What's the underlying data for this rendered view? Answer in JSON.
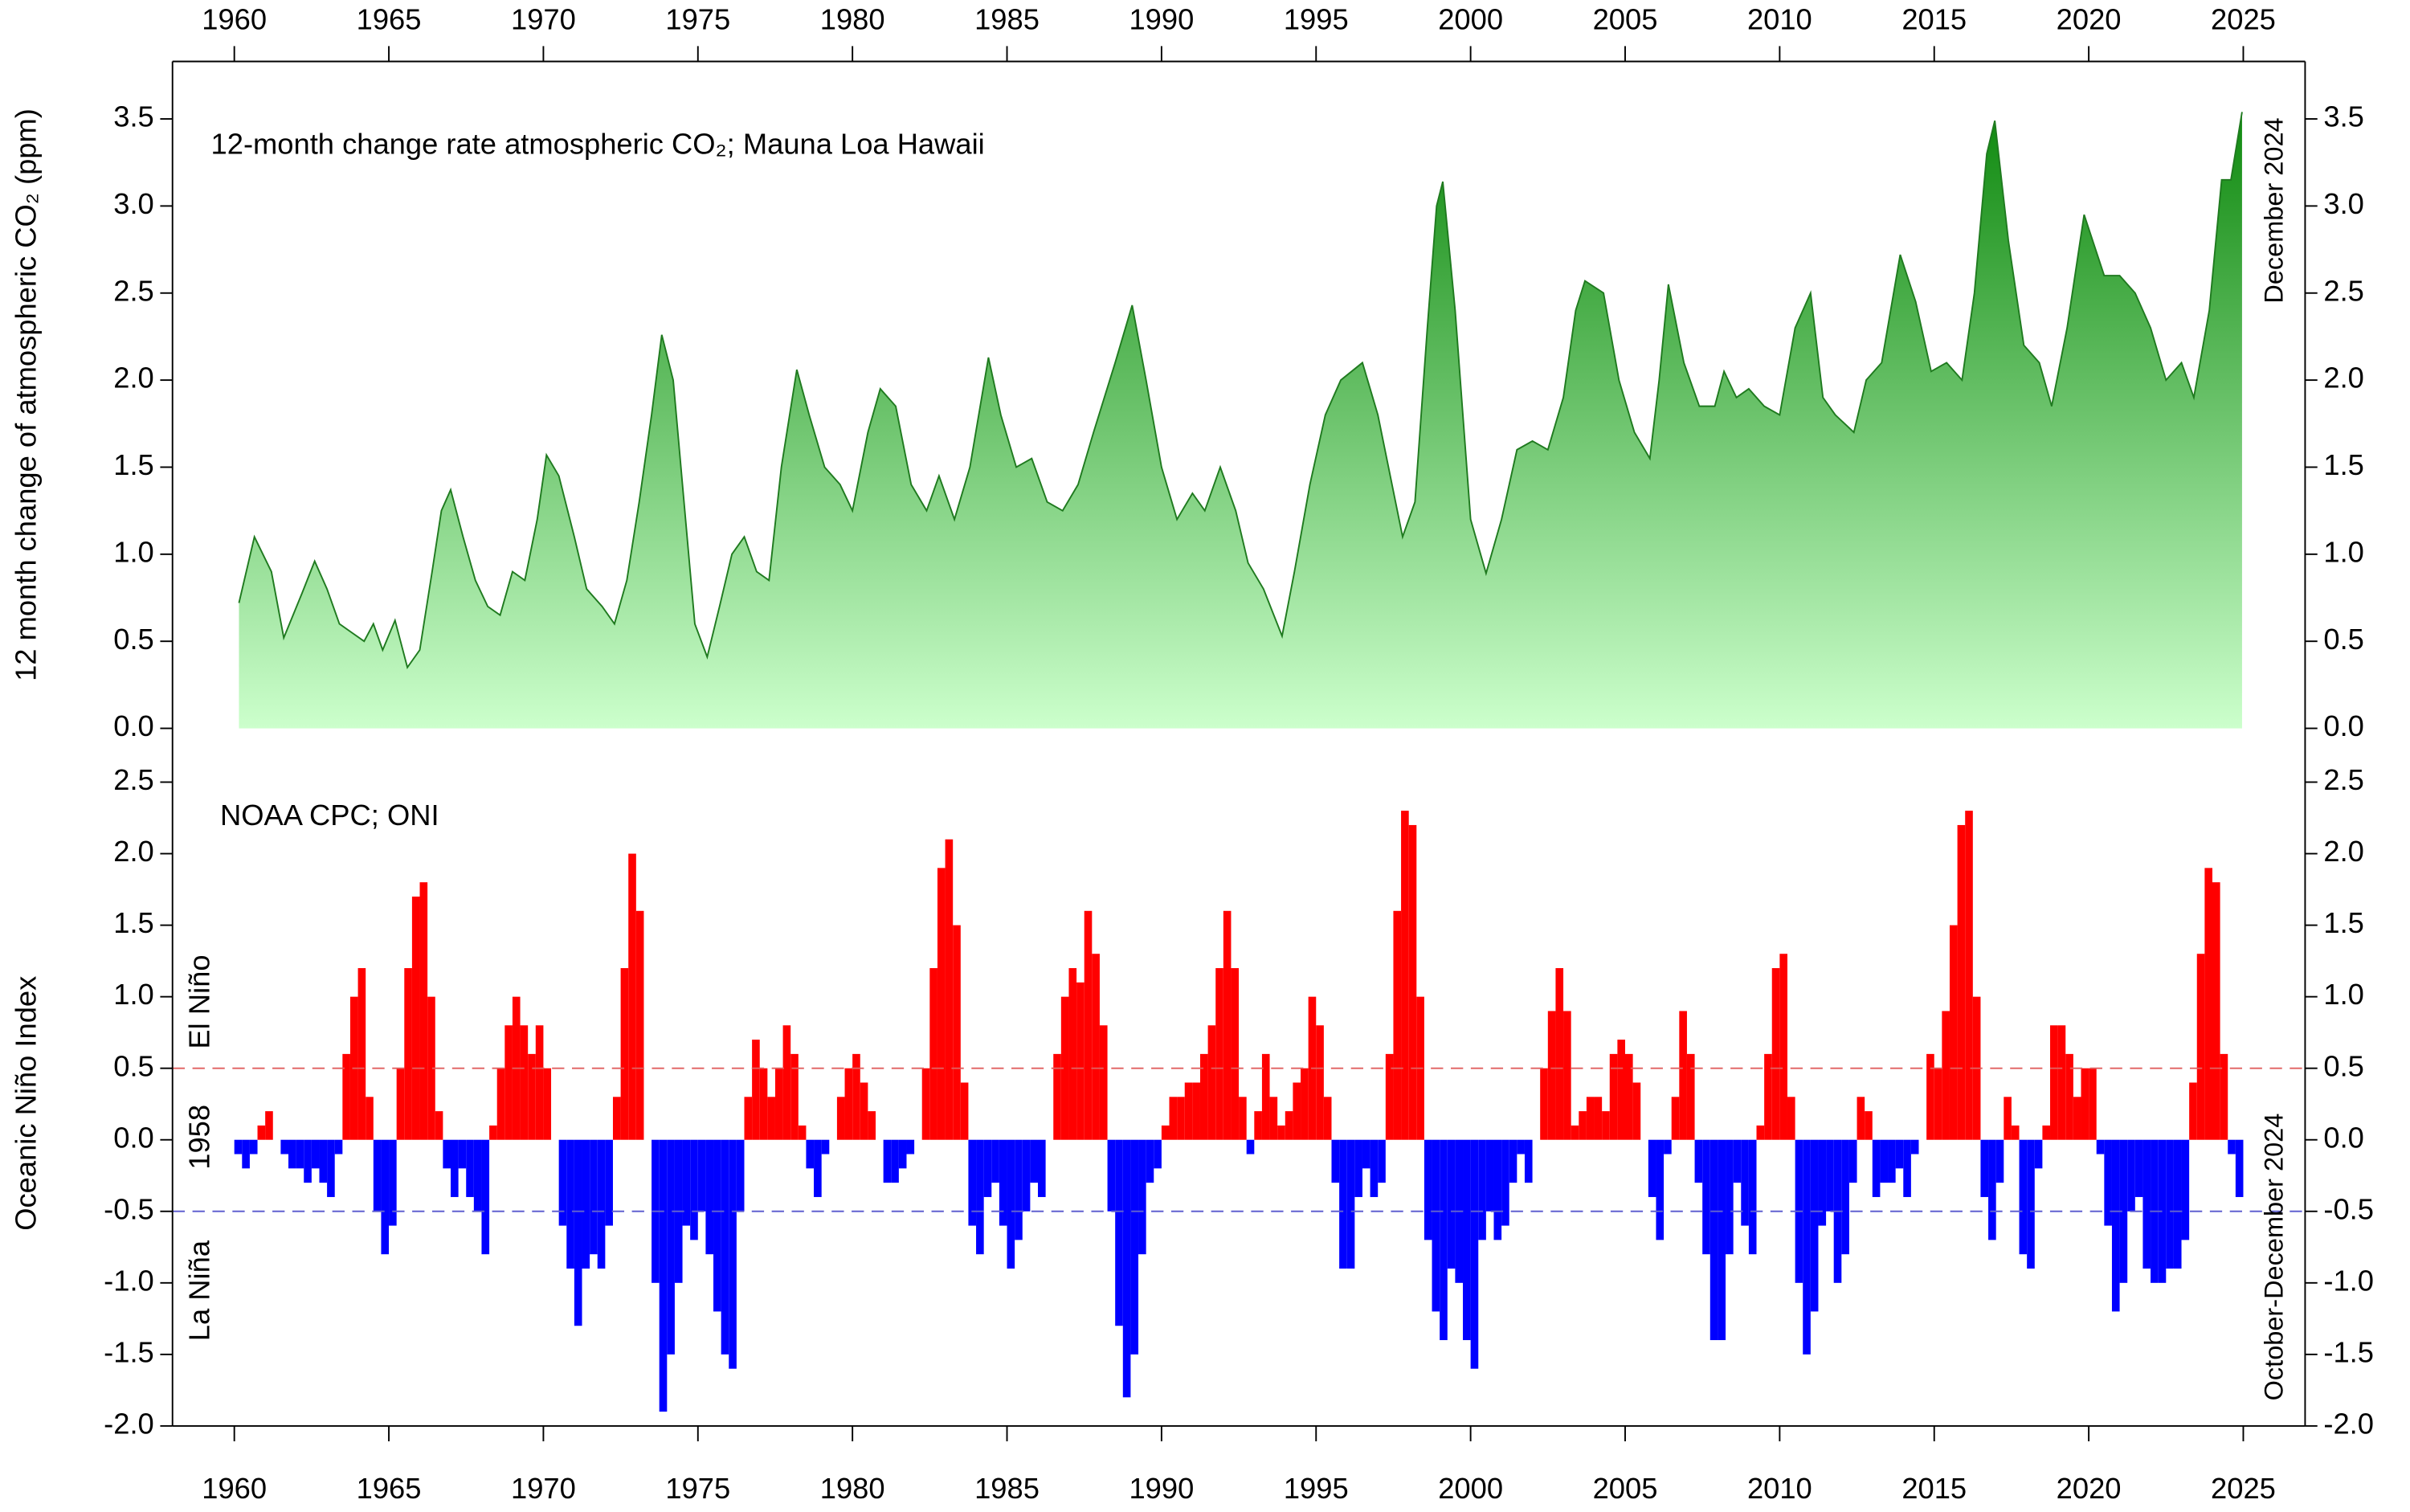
{
  "chart_data": [
    {
      "type": "area",
      "title": "12-month change rate atmospheric CO₂; Mauna Loa Hawaii",
      "y_label": "12 month change of atmospheric CO₂ (ppm)",
      "annotation": "December 2024",
      "color": "#1f7a1f",
      "fill_top": "#008000",
      "fill_bottom": "#ccffcc",
      "xlim": [
        1958,
        2027
      ],
      "ylim": [
        0,
        3.83
      ],
      "xticks": [
        1960,
        1965,
        1970,
        1975,
        1980,
        1985,
        1990,
        1995,
        2000,
        2005,
        2010,
        2015,
        2020,
        2025
      ],
      "yticks": [
        {
          "value": 0,
          "label": "0.0"
        },
        0.5,
        {
          "value": 1,
          "label": "1.0"
        },
        1.5,
        {
          "value": 2,
          "label": "2.0"
        },
        2.5,
        {
          "value": 3,
          "label": "3.0"
        },
        3.5
      ],
      "x": [
        1960.15,
        1960.65,
        1961.2,
        1961.6,
        1962.2,
        1962.6,
        1963.0,
        1963.4,
        1963.8,
        1964.2,
        1964.5,
        1964.8,
        1965.2,
        1965.6,
        1966.0,
        1966.4,
        1966.7,
        1967.0,
        1967.4,
        1967.8,
        1968.2,
        1968.6,
        1969.0,
        1969.4,
        1969.8,
        1970.1,
        1970.5,
        1971.0,
        1971.4,
        1971.9,
        1972.3,
        1972.7,
        1973.1,
        1973.5,
        1973.83,
        1974.2,
        1974.6,
        1974.9,
        1975.3,
        1975.7,
        1976.1,
        1976.5,
        1976.9,
        1977.3,
        1977.7,
        1978.2,
        1978.6,
        1979.1,
        1979.6,
        1980.0,
        1980.5,
        1980.9,
        1981.4,
        1981.9,
        1982.4,
        1982.8,
        1983.3,
        1983.8,
        1984.4,
        1984.8,
        1985.3,
        1985.8,
        1986.3,
        1986.8,
        1987.3,
        1987.8,
        1988.5,
        1989.05,
        1989.5,
        1990.0,
        1990.5,
        1991.0,
        1991.4,
        1991.9,
        1992.4,
        1992.8,
        1993.3,
        1993.9,
        1994.3,
        1994.8,
        1995.3,
        1995.8,
        1996.5,
        1997.0,
        1997.4,
        1997.8,
        1998.2,
        1998.6,
        1998.9,
        1999.1,
        1999.5,
        2000.0,
        2000.5,
        2001.0,
        2001.5,
        2002.0,
        2002.5,
        2003.0,
        2003.4,
        2003.7,
        2004.3,
        2004.8,
        2005.3,
        2005.8,
        2006.1,
        2006.4,
        2006.9,
        2007.4,
        2007.9,
        2008.2,
        2008.6,
        2009.0,
        2009.5,
        2010.0,
        2010.5,
        2011.0,
        2011.4,
        2011.8,
        2012.4,
        2012.8,
        2013.3,
        2013.9,
        2014.4,
        2014.9,
        2015.4,
        2015.9,
        2016.3,
        2016.7,
        2016.96,
        2017.4,
        2017.9,
        2018.4,
        2018.8,
        2019.3,
        2019.85,
        2020.5,
        2021.0,
        2021.5,
        2022.0,
        2022.5,
        2023.0,
        2023.4,
        2023.9,
        2024.3,
        2024.6,
        2024.96
      ],
      "values": [
        0.72,
        1.1,
        0.9,
        0.52,
        0.78,
        0.96,
        0.8,
        0.6,
        0.55,
        0.5,
        0.6,
        0.45,
        0.62,
        0.35,
        0.45,
        0.9,
        1.25,
        1.37,
        1.1,
        0.85,
        0.7,
        0.65,
        0.9,
        0.85,
        1.2,
        1.57,
        1.45,
        1.1,
        0.8,
        0.7,
        0.6,
        0.85,
        1.3,
        1.8,
        2.26,
        2.0,
        1.2,
        0.6,
        0.41,
        0.7,
        1.0,
        1.1,
        0.9,
        0.85,
        1.5,
        2.06,
        1.8,
        1.5,
        1.4,
        1.25,
        1.7,
        1.95,
        1.85,
        1.4,
        1.25,
        1.45,
        1.2,
        1.5,
        2.13,
        1.8,
        1.5,
        1.55,
        1.3,
        1.25,
        1.4,
        1.7,
        2.1,
        2.43,
        2.0,
        1.5,
        1.2,
        1.35,
        1.25,
        1.5,
        1.25,
        0.95,
        0.8,
        0.53,
        0.9,
        1.4,
        1.8,
        2.0,
        2.1,
        1.8,
        1.45,
        1.1,
        1.3,
        2.3,
        3.0,
        3.14,
        2.4,
        1.2,
        0.89,
        1.2,
        1.6,
        1.65,
        1.6,
        1.9,
        2.4,
        2.57,
        2.5,
        2.0,
        1.7,
        1.55,
        2.0,
        2.55,
        2.1,
        1.85,
        1.85,
        2.05,
        1.9,
        1.95,
        1.85,
        1.8,
        2.3,
        2.5,
        1.9,
        1.8,
        1.7,
        2.0,
        2.1,
        2.72,
        2.45,
        2.05,
        2.1,
        2.0,
        2.5,
        3.3,
        3.49,
        2.8,
        2.2,
        2.1,
        1.85,
        2.3,
        2.95,
        2.6,
        2.6,
        2.5,
        2.3,
        2.0,
        2.1,
        1.9,
        2.4,
        3.15,
        3.15,
        3.54
      ]
    },
    {
      "type": "bar",
      "title": "NOAA CPC; ONI",
      "y_label": "Oceanic Niño Index",
      "annotations": [
        {
          "text": "El Niño",
          "color": "#ff0000"
        },
        {
          "text": "1958",
          "color": "#000000"
        },
        {
          "text": "La Niña",
          "color": "#0000ff"
        },
        {
          "text": "October-December 2024",
          "color": "#000000"
        }
      ],
      "positive_color": "#ff0000",
      "negative_color": "#0000ff",
      "reference_lines": [
        {
          "value": 0.5,
          "color": "#e06060"
        },
        {
          "value": -0.5,
          "color": "#6060d0"
        }
      ],
      "xlim": [
        1958,
        2027
      ],
      "ylim": [
        -2,
        2.5
      ],
      "xticks": [
        1960,
        1965,
        1970,
        1975,
        1980,
        1985,
        1990,
        1995,
        2000,
        2005,
        2010,
        2015,
        2020,
        2025
      ],
      "yticks": [
        {
          "value": -2,
          "label": "-2.0"
        },
        -1.5,
        {
          "value": -1,
          "label": "-1.0"
        },
        -0.5,
        {
          "value": 0,
          "label": "0.0"
        },
        0.5,
        {
          "value": 1,
          "label": "1.0"
        },
        1.5,
        {
          "value": 2,
          "label": "2.0"
        },
        2.5
      ],
      "x": [
        1960,
        1960.25,
        1960.5,
        1960.75,
        1961,
        1961.25,
        1961.5,
        1961.75,
        1962,
        1962.25,
        1962.5,
        1962.75,
        1963,
        1963.25,
        1963.5,
        1963.75,
        1964,
        1964.25,
        1964.5,
        1964.75,
        1965,
        1965.25,
        1965.5,
        1965.75,
        1966,
        1966.25,
        1966.5,
        1966.75,
        1967,
        1967.25,
        1967.5,
        1967.75,
        1968,
        1968.25,
        1968.5,
        1968.75,
        1969,
        1969.25,
        1969.5,
        1969.75,
        1970,
        1970.25,
        1970.5,
        1970.75,
        1971,
        1971.25,
        1971.5,
        1971.75,
        1972,
        1972.25,
        1972.5,
        1972.75,
        1973,
        1973.25,
        1973.5,
        1973.75,
        1974,
        1974.25,
        1974.5,
        1974.75,
        1975,
        1975.25,
        1975.5,
        1975.75,
        1976,
        1976.25,
        1976.5,
        1976.75,
        1977,
        1977.25,
        1977.5,
        1977.75,
        1978,
        1978.25,
        1978.5,
        1978.75,
        1979,
        1979.25,
        1979.5,
        1979.75,
        1980,
        1980.25,
        1980.5,
        1980.75,
        1981,
        1981.25,
        1981.5,
        1981.75,
        1982,
        1982.25,
        1982.5,
        1982.75,
        1983,
        1983.25,
        1983.5,
        1983.75,
        1984,
        1984.25,
        1984.5,
        1984.75,
        1985,
        1985.25,
        1985.5,
        1985.75,
        1986,
        1986.25,
        1986.5,
        1986.75,
        1987,
        1987.25,
        1987.5,
        1987.75,
        1988,
        1988.25,
        1988.5,
        1988.75,
        1989,
        1989.25,
        1989.5,
        1989.75,
        1990,
        1990.25,
        1990.5,
        1990.75,
        1991,
        1991.25,
        1991.5,
        1991.75,
        1992,
        1992.25,
        1992.5,
        1992.75,
        1993,
        1993.25,
        1993.5,
        1993.75,
        1994,
        1994.25,
        1994.5,
        1994.75,
        1995,
        1995.25,
        1995.5,
        1995.75,
        1996,
        1996.25,
        1996.5,
        1996.75,
        1997,
        1997.25,
        1997.5,
        1997.75,
        1998,
        1998.25,
        1998.5,
        1998.75,
        1999,
        1999.25,
        1999.5,
        1999.75,
        2000,
        2000.25,
        2000.5,
        2000.75,
        2001,
        2001.25,
        2001.5,
        2001.75,
        2002,
        2002.25,
        2002.5,
        2002.75,
        2003,
        2003.25,
        2003.5,
        2003.75,
        2004,
        2004.25,
        2004.5,
        2004.75,
        2005,
        2005.25,
        2005.5,
        2005.75,
        2006,
        2006.25,
        2006.5,
        2006.75,
        2007,
        2007.25,
        2007.5,
        2007.75,
        2008,
        2008.25,
        2008.5,
        2008.75,
        2009,
        2009.25,
        2009.5,
        2009.75,
        2010,
        2010.25,
        2010.5,
        2010.75,
        2011,
        2011.25,
        2011.5,
        2011.75,
        2012,
        2012.25,
        2012.5,
        2012.75,
        2013,
        2013.25,
        2013.5,
        2013.75,
        2014,
        2014.25,
        2014.5,
        2014.75,
        2015,
        2015.25,
        2015.5,
        2015.75,
        2016,
        2016.25,
        2016.5,
        2016.75,
        2017,
        2017.25,
        2017.5,
        2017.75,
        2018,
        2018.25,
        2018.5,
        2018.75,
        2019,
        2019.25,
        2019.5,
        2019.75,
        2020,
        2020.25,
        2020.5,
        2020.75,
        2021,
        2021.25,
        2021.5,
        2021.75,
        2022,
        2022.25,
        2022.5,
        2022.75,
        2023,
        2023.25,
        2023.5,
        2023.75,
        2024,
        2024.25,
        2024.5,
        2024.75
      ],
      "values": [
        -0.1,
        -0.2,
        -0.1,
        0.1,
        0.2,
        0.0,
        -0.1,
        -0.2,
        -0.2,
        -0.3,
        -0.2,
        -0.3,
        -0.4,
        -0.1,
        0.6,
        1.0,
        1.2,
        0.3,
        -0.5,
        -0.8,
        -0.6,
        0.5,
        1.2,
        1.7,
        1.8,
        1.0,
        0.2,
        -0.2,
        -0.4,
        -0.2,
        -0.4,
        -0.5,
        -0.8,
        0.1,
        0.5,
        0.8,
        1.0,
        0.8,
        0.6,
        0.8,
        0.5,
        0.0,
        -0.6,
        -0.9,
        -1.3,
        -0.9,
        -0.8,
        -0.9,
        -0.6,
        0.3,
        1.2,
        2.0,
        1.6,
        0.0,
        -1.0,
        -1.9,
        -1.5,
        -1.0,
        -0.6,
        -0.7,
        -0.5,
        -0.8,
        -1.2,
        -1.5,
        -1.6,
        -0.5,
        0.3,
        0.7,
        0.5,
        0.3,
        0.5,
        0.8,
        0.6,
        0.1,
        -0.2,
        -0.4,
        -0.1,
        0.0,
        0.3,
        0.5,
        0.6,
        0.4,
        0.2,
        0.0,
        -0.3,
        -0.3,
        -0.2,
        -0.1,
        0.0,
        0.5,
        1.2,
        1.9,
        2.1,
        1.5,
        0.4,
        -0.6,
        -0.8,
        -0.4,
        -0.3,
        -0.6,
        -0.9,
        -0.7,
        -0.5,
        -0.3,
        -0.4,
        0.0,
        0.6,
        1.0,
        1.2,
        1.1,
        1.6,
        1.3,
        0.8,
        -0.5,
        -1.3,
        -1.8,
        -1.5,
        -0.8,
        -0.3,
        -0.2,
        0.1,
        0.3,
        0.3,
        0.4,
        0.4,
        0.6,
        0.8,
        1.2,
        1.6,
        1.2,
        0.3,
        -0.1,
        0.2,
        0.6,
        0.3,
        0.1,
        0.2,
        0.4,
        0.5,
        1.0,
        0.8,
        0.3,
        -0.3,
        -0.9,
        -0.9,
        -0.4,
        -0.2,
        -0.4,
        -0.3,
        0.6,
        1.6,
        2.3,
        2.2,
        1.0,
        -0.7,
        -1.2,
        -1.4,
        -0.9,
        -1.0,
        -1.4,
        -1.6,
        -0.7,
        -0.5,
        -0.7,
        -0.6,
        -0.3,
        -0.1,
        -0.3,
        0.0,
        0.5,
        0.9,
        1.2,
        0.9,
        0.1,
        0.2,
        0.3,
        0.3,
        0.2,
        0.6,
        0.7,
        0.6,
        0.4,
        0.0,
        -0.4,
        -0.7,
        -0.1,
        0.3,
        0.9,
        0.6,
        -0.3,
        -0.8,
        -1.4,
        -1.4,
        -0.8,
        -0.3,
        -0.6,
        -0.8,
        0.1,
        0.6,
        1.2,
        1.3,
        0.3,
        -1.0,
        -1.5,
        -1.2,
        -0.6,
        -0.5,
        -1.0,
        -0.8,
        -0.3,
        0.3,
        0.2,
        -0.4,
        -0.3,
        -0.3,
        -0.2,
        -0.4,
        -0.1,
        0.0,
        0.6,
        0.5,
        0.9,
        1.5,
        2.2,
        2.3,
        1.0,
        -0.4,
        -0.7,
        -0.3,
        0.3,
        0.1,
        -0.8,
        -0.9,
        -0.2,
        0.1,
        0.8,
        0.8,
        0.6,
        0.3,
        0.5,
        0.5,
        -0.1,
        -0.6,
        -1.2,
        -1.0,
        -0.5,
        -0.4,
        -0.9,
        -1.0,
        -1.0,
        -0.9,
        -0.9,
        -0.7,
        0.4,
        1.3,
        1.9,
        1.8,
        0.6,
        -0.1,
        -0.4
      ]
    }
  ]
}
